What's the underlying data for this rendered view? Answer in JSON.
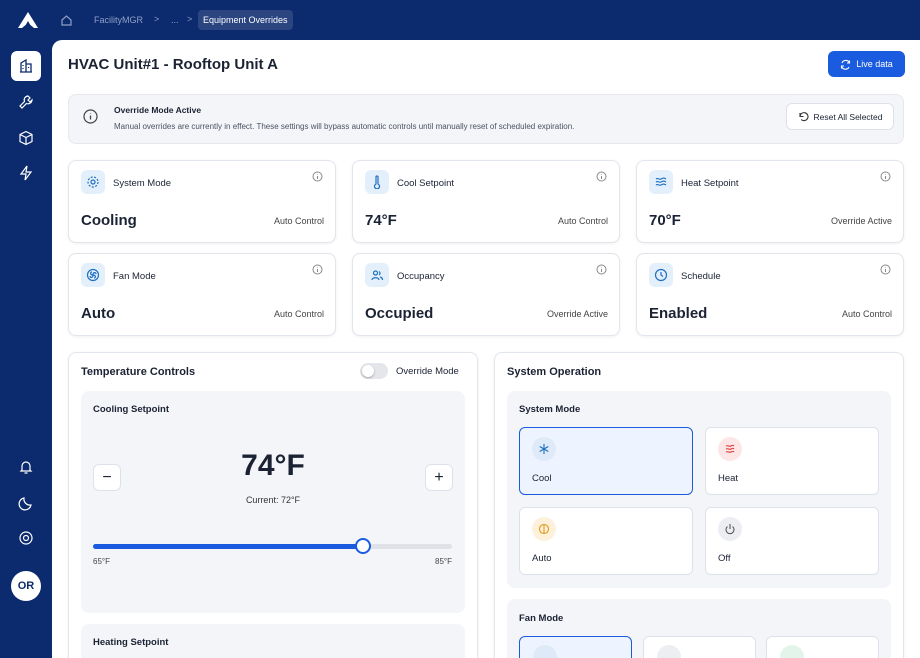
{
  "breadcrumb": [
    "FacilityMGR",
    "...",
    "Equipment Overrides"
  ],
  "sidebar": {
    "avatar": "OR"
  },
  "header": {
    "title": "HVAC Unit#1 - Rooftop Unit A",
    "live_button": "Live data"
  },
  "alert": {
    "title": "Override Mode Active",
    "message": "Manual overrides are currently in effect. These settings will bypass automatic controls until manually reset of scheduled expiration.",
    "reset_button": "Reset All Selected"
  },
  "status_cards": [
    {
      "label": "System Mode",
      "value": "Cooling",
      "status": "Auto Control"
    },
    {
      "label": "Cool Setpoint",
      "value": "74°F",
      "status": "Auto Control"
    },
    {
      "label": "Heat Setpoint",
      "value": "70°F",
      "status": "Override Active"
    },
    {
      "label": "Fan Mode",
      "value": "Auto",
      "status": "Auto Control"
    },
    {
      "label": "Occupancy",
      "value": "Occupied",
      "status": "Override Active"
    },
    {
      "label": "Schedule",
      "value": "Enabled",
      "status": "Auto Control"
    }
  ],
  "temperature_controls": {
    "title": "Temperature Controls",
    "toggle_label": "Override Mode",
    "cooling": {
      "title": "Cooling Setpoint",
      "value": "74°F",
      "current": "Current: 72°F",
      "min_label": "65°F",
      "max_label": "85°F"
    },
    "heating": {
      "title": "Heating Setpoint"
    }
  },
  "system_operation": {
    "title": "System Operation",
    "system_mode": {
      "title": "System Mode",
      "options": [
        "Cool",
        "Heat",
        "Auto",
        "Off"
      ]
    },
    "fan_mode": {
      "title": "Fan Mode"
    }
  }
}
